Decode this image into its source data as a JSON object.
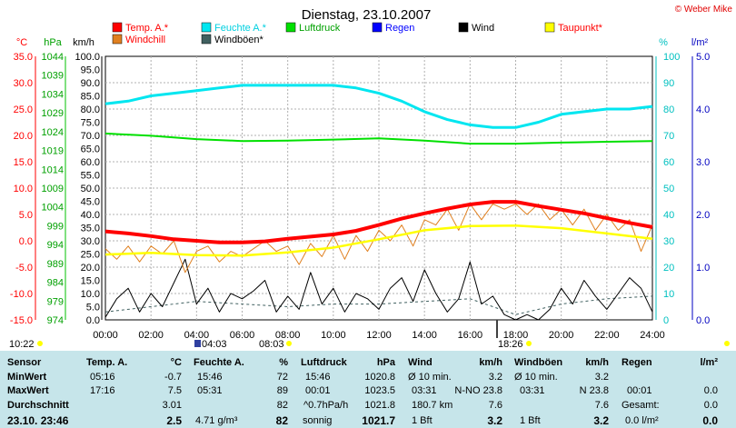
{
  "header": {
    "title": "Dienstag, 23.10.2007",
    "copyright": "© Weber Mike"
  },
  "legend": [
    {
      "label": "Temp. A.*",
      "color": "#ff0000",
      "text_color": "#ff0000"
    },
    {
      "label": "Feuchte A.*",
      "color": "#00e6f0",
      "text_color": "#00d0e0"
    },
    {
      "label": "Luftdruck",
      "color": "#00e000",
      "text_color": "#00a000"
    },
    {
      "label": "Regen",
      "color": "#0000ff",
      "text_color": "#0000ff"
    },
    {
      "label": "Wind",
      "color": "#000000",
      "text_color": "#000000"
    },
    {
      "label": "Taupunkt*",
      "color": "#ffff00",
      "text_color": "#ff0000"
    },
    {
      "label": "Windchill",
      "color": "#e08020",
      "text_color": "#ff0000"
    },
    {
      "label": "Windböen*",
      "color": "#406060",
      "text_color": "#000000"
    }
  ],
  "axes": {
    "temp": {
      "unit": "°C",
      "ticks": [
        "35.0",
        "30.0",
        "25.0",
        "20.0",
        "15.0",
        "10.0",
        "5.0",
        "0.0",
        "-5.0",
        "-10.0",
        "-15.0"
      ],
      "color": "#ff0000",
      "min": -15,
      "max": 35
    },
    "pressure": {
      "unit": "hPa",
      "ticks": [
        "1044",
        "1039",
        "1034",
        "1029",
        "1024",
        "1019",
        "1014",
        "1009",
        "1004",
        "999",
        "994",
        "989",
        "984",
        "979",
        "974"
      ],
      "color": "#00b000",
      "min": 974,
      "max": 1044
    },
    "wind": {
      "unit": "km/h",
      "ticks": [
        "100.0",
        "95.0",
        "90.0",
        "85.0",
        "80.0",
        "75.0",
        "70.0",
        "65.0",
        "60.0",
        "55.0",
        "50.0",
        "45.0",
        "40.0",
        "35.0",
        "30.0",
        "25.0",
        "20.0",
        "15.0",
        "10.0",
        "5.0",
        "0.0"
      ],
      "color": "#000000",
      "min": 0,
      "max": 100
    },
    "humidity": {
      "unit": "%",
      "ticks": [
        "100",
        "90",
        "80",
        "70",
        "60",
        "50",
        "40",
        "30",
        "20",
        "10",
        "0"
      ],
      "color": "#00c0c0",
      "min": 0,
      "max": 100
    },
    "rain": {
      "unit": "l/m²",
      "ticks": [
        "5.0",
        "4.0",
        "3.0",
        "2.0",
        "1.0",
        "0.0"
      ],
      "color": "#0000c0",
      "min": 0,
      "max": 5
    },
    "time": {
      "ticks": [
        "00:00",
        "02:00",
        "04:00",
        "06:00",
        "08:00",
        "10:00",
        "12:00",
        "14:00",
        "16:00",
        "18:00",
        "20:00",
        "22:00",
        "24:00"
      ]
    }
  },
  "markers": {
    "sunrise_left": "10:22",
    "m1": "04:03",
    "m2": "08:03",
    "m3": "18:26"
  },
  "chart_data": {
    "type": "line",
    "title": "Dienstag, 23.10.2007",
    "x_unit": "hours",
    "xlim": [
      0,
      24
    ],
    "series": [
      {
        "name": "Temp. A.*",
        "axis": "temp",
        "x": [
          0,
          1,
          2,
          3,
          4,
          5,
          6,
          7,
          8,
          9,
          10,
          11,
          12,
          13,
          14,
          15,
          16,
          17,
          18,
          19,
          20,
          21,
          22,
          23,
          24
        ],
        "values": [
          1.8,
          1.4,
          0.9,
          0.3,
          0.0,
          -0.3,
          -0.3,
          -0.1,
          0.4,
          0.8,
          1.2,
          1.9,
          3.0,
          4.2,
          5.2,
          6.1,
          6.9,
          7.4,
          7.4,
          6.6,
          5.9,
          5.2,
          4.3,
          3.4,
          2.6
        ]
      },
      {
        "name": "Feuchte A.*",
        "axis": "humidity",
        "x": [
          0,
          1,
          2,
          3,
          4,
          5,
          6,
          7,
          8,
          9,
          10,
          11,
          12,
          13,
          14,
          15,
          16,
          17,
          18,
          19,
          20,
          21,
          22,
          23,
          24
        ],
        "values": [
          82,
          83,
          85,
          86,
          87,
          88,
          89,
          89,
          89,
          89,
          89,
          88,
          86,
          83,
          79,
          76,
          74,
          73,
          73,
          75,
          78,
          79,
          80,
          80,
          81
        ]
      },
      {
        "name": "Luftdruck",
        "axis": "pressure",
        "x": [
          0,
          2,
          4,
          6,
          8,
          10,
          12,
          14,
          16,
          18,
          20,
          22,
          24
        ],
        "values": [
          1023.5,
          1022.9,
          1022.0,
          1021.5,
          1021.6,
          1021.9,
          1022.2,
          1021.6,
          1020.8,
          1020.8,
          1021.1,
          1021.3,
          1021.5
        ]
      },
      {
        "name": "Taupunkt*",
        "axis": "temp",
        "x": [
          0,
          2,
          4,
          6,
          8,
          10,
          12,
          14,
          16,
          18,
          20,
          22,
          24
        ],
        "values": [
          -2.6,
          -2.3,
          -2.7,
          -2.8,
          -2.2,
          -1.3,
          0.3,
          2.0,
          2.8,
          2.9,
          2.4,
          1.4,
          0.4
        ]
      },
      {
        "name": "Windchill",
        "axis": "temp",
        "x": [
          0,
          0.5,
          1,
          1.5,
          2,
          2.5,
          3,
          3.5,
          4,
          4.5,
          5,
          5.5,
          6,
          6.5,
          7,
          7.5,
          8,
          8.5,
          9,
          9.5,
          10,
          10.5,
          11,
          11.5,
          12,
          12.5,
          13,
          13.5,
          14,
          14.5,
          15,
          15.5,
          16,
          16.5,
          17,
          17.5,
          18,
          18.5,
          19,
          19.5,
          20,
          20.5,
          21,
          21.5,
          22,
          22.5,
          23,
          23.5,
          24
        ],
        "values": [
          -1.5,
          -3.5,
          -1,
          -4,
          -1,
          -2.5,
          0,
          -6,
          -2,
          -1,
          -4,
          -2,
          -3,
          -1.5,
          0,
          -2,
          -1,
          -4.5,
          -0.5,
          -3,
          1,
          -3.5,
          1,
          -2,
          2,
          0,
          3,
          -1,
          4,
          3,
          6,
          2,
          7,
          4,
          7,
          6,
          7,
          5,
          7,
          4,
          6,
          3,
          6,
          2,
          5,
          2,
          4,
          -2,
          3
        ]
      },
      {
        "name": "Wind",
        "axis": "wind",
        "x": [
          0,
          0.5,
          1,
          1.5,
          2,
          2.5,
          3,
          3.5,
          4,
          4.5,
          5,
          5.5,
          6,
          6.5,
          7,
          7.5,
          8,
          8.5,
          9,
          9.5,
          10,
          10.5,
          11,
          11.5,
          12,
          12.5,
          13,
          13.5,
          14,
          14.5,
          15,
          15.5,
          16,
          16.5,
          17,
          17.5,
          18,
          18.5,
          19,
          19.5,
          20,
          20.5,
          21,
          21.5,
          22,
          22.5,
          23,
          23.5,
          24
        ],
        "values": [
          1,
          8,
          12,
          3,
          10,
          5,
          14,
          23,
          6,
          12,
          3,
          10,
          8,
          11,
          15,
          3,
          9,
          4,
          18,
          6,
          12,
          3,
          10,
          8,
          4,
          12,
          16,
          7,
          19,
          10,
          3,
          8,
          22,
          6,
          9,
          2,
          0,
          2,
          0,
          4,
          12,
          6,
          15,
          9,
          4,
          10,
          16,
          12,
          3
        ]
      },
      {
        "name": "Windböen*",
        "axis": "wind",
        "x": [
          0,
          2,
          4,
          6,
          8,
          10,
          12,
          14,
          16,
          18,
          20,
          22,
          24
        ],
        "values": [
          3,
          5,
          7,
          6,
          5,
          6,
          6,
          7,
          8,
          2,
          6,
          8,
          9
        ]
      }
    ]
  },
  "stats": {
    "headers": {
      "sensor": "Sensor",
      "temp": "Temp. A.",
      "temp_u": "°C",
      "hum": "Feuchte A.",
      "hum_u": "%",
      "press": "Luftdruck",
      "press_u": "hPa",
      "wind": "Wind",
      "wind_u": "km/h",
      "gust": "Windböen",
      "gust_u": "km/h",
      "rain": "Regen",
      "rain_u": "l/m²"
    },
    "rows": {
      "min": {
        "label": "MinWert",
        "temp_t": "05:16",
        "temp_v": "-0.7",
        "hum_t": "15:46",
        "hum_v": "72",
        "press_t": "15:46",
        "press_v": "1020.8",
        "wind_t": "Ø 10 min.",
        "wind_v": "3.2",
        "gust_t": "Ø 10 min.",
        "gust_v": "3.2"
      },
      "max": {
        "label": "MaxWert",
        "temp_t": "17:16",
        "temp_v": "7.5",
        "hum_t": "05:31",
        "hum_v": "89",
        "press_t": "00:01",
        "press_v": "1023.5",
        "wind_t": "03:31",
        "wind_d": "N-NO 23.8",
        "gust_t": "03:31",
        "gust_d": "N 23.8",
        "rain_t": "00:01",
        "rain_v": "0.0"
      },
      "avg": {
        "label": "Durchschnitt",
        "temp_v": "3.01",
        "hum_v": "82",
        "press_t": "^0.7hPa/h",
        "press_v": "1021.8",
        "wind_t": "180.7 km",
        "wind_v": "7.6",
        "gust_v": "7.6",
        "rain_t": "Gesamt:",
        "rain_v": "0.0"
      },
      "now": {
        "label": "23.10. 23:46",
        "temp_v": "2.5",
        "hum_t": "4.71 g/m³",
        "hum_v": "82",
        "press_t": "sonnig",
        "press_v": "1021.7",
        "wind_t": "1 Bft",
        "wind_v": "3.2",
        "gust_t": "1 Bft",
        "gust_v": "3.2",
        "rain_t": "0.0 l/m²",
        "rain_v": "0.0"
      }
    }
  }
}
